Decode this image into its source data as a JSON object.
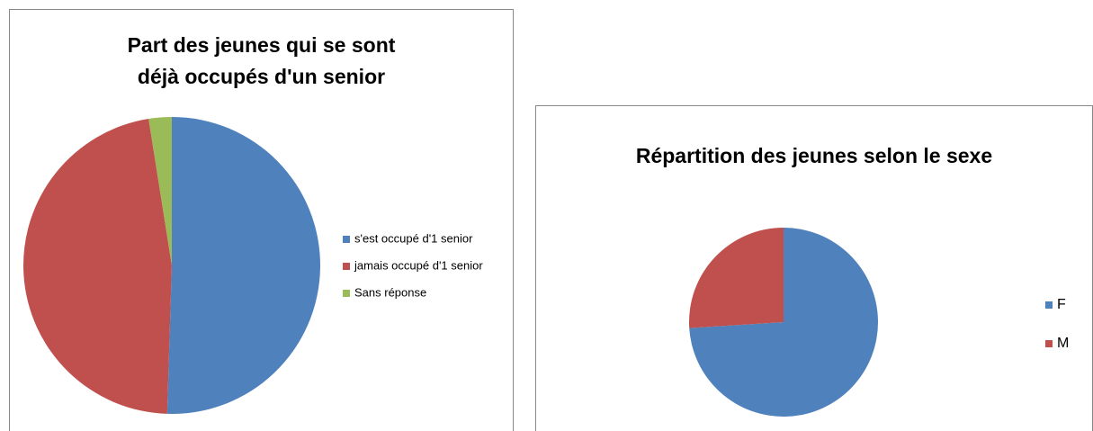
{
  "chart_data": [
    {
      "type": "pie",
      "title": "Part des jeunes qui se sont déjà occupés d'un senior",
      "categories": [
        "s'est occupé d'1 senior",
        "jamais occupé d'1 senior",
        "Sans réponse"
      ],
      "values": [
        50.5,
        47,
        2.5
      ],
      "colors": [
        "#4f81bd",
        "#c0504d",
        "#9bbb59"
      ],
      "legend": "right"
    },
    {
      "type": "pie",
      "title": "Répartition des jeunes selon le sexe",
      "categories": [
        "F",
        "M"
      ],
      "values": [
        74,
        26
      ],
      "colors": [
        "#4f81bd",
        "#c0504d"
      ],
      "legend": "right"
    }
  ]
}
